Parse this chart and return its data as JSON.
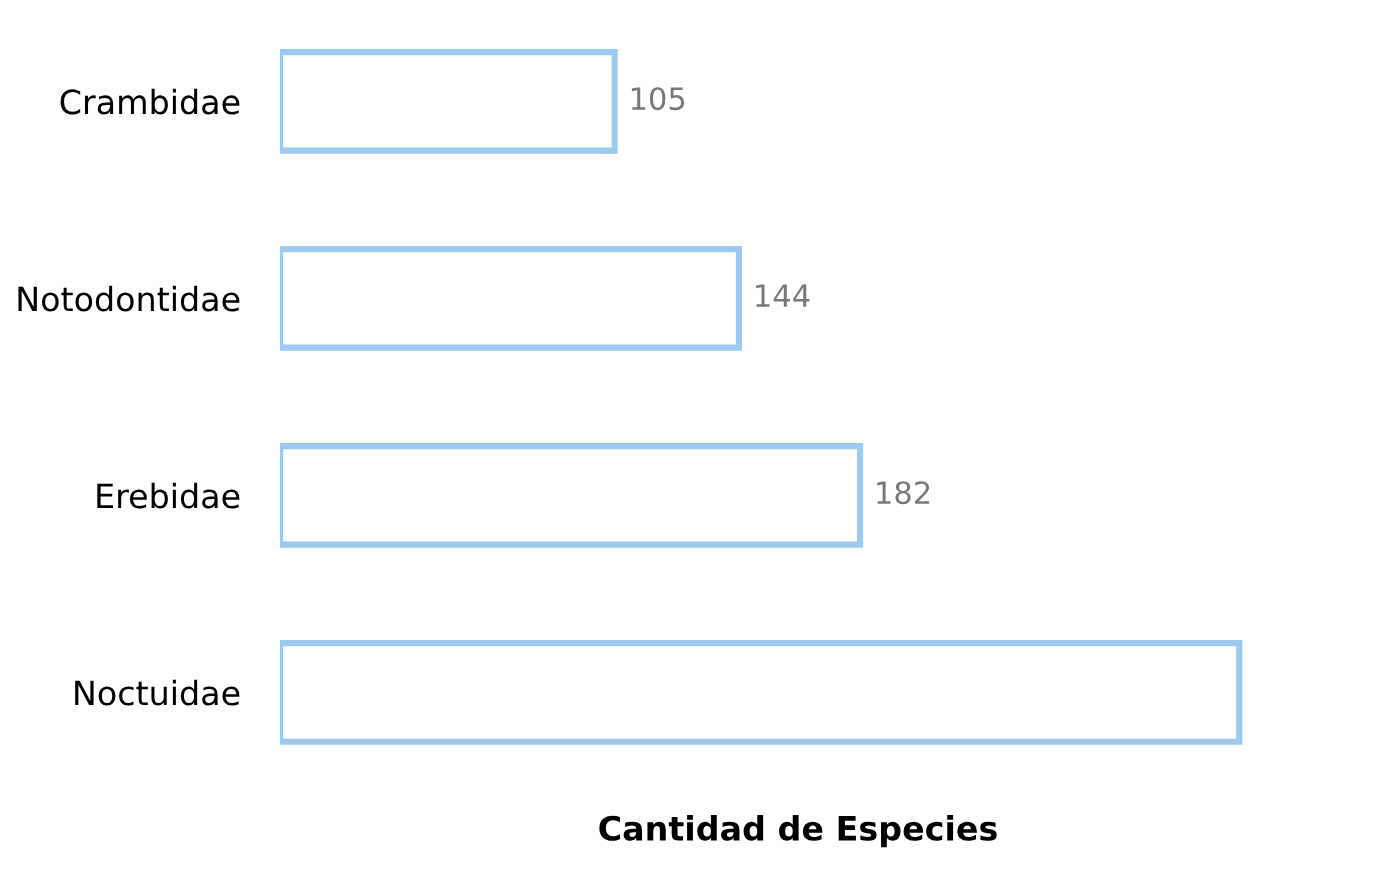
{
  "chart_data": {
    "type": "bar",
    "orientation": "horizontal",
    "xlabel": "Cantidad de Especies",
    "categories": [
      "Crambidae",
      "Notodontidae",
      "Erebidae",
      "Noctuidae"
    ],
    "values": [
      105,
      144,
      182,
      301
    ],
    "value_labels": [
      "105",
      "144",
      "182",
      null
    ],
    "color": "#9cc9ef",
    "grid": false,
    "legend": false
  }
}
